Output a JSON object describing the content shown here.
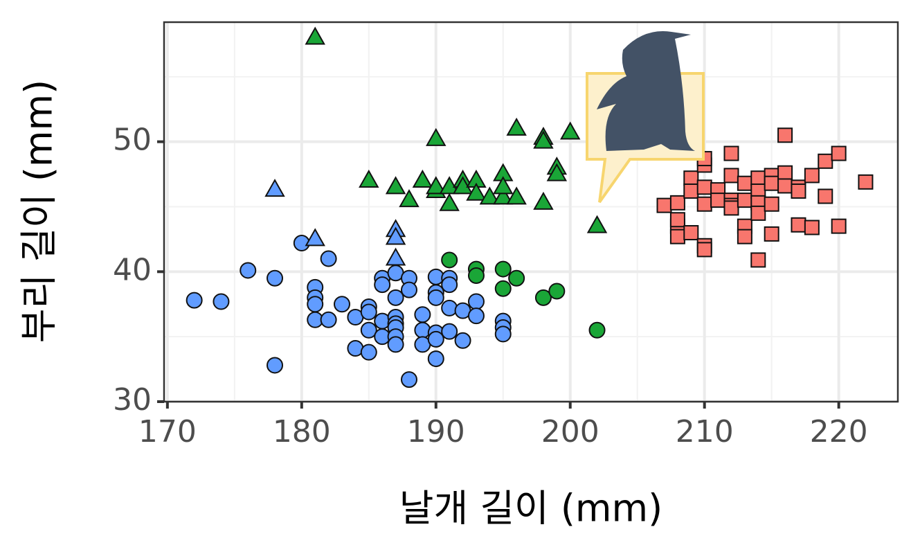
{
  "chart_data": {
    "type": "scatter",
    "x_label": "날개 길이 (mm)",
    "y_label": "부리 길이 (mm)",
    "xlim": [
      169.75,
      224.4
    ],
    "ylim": [
      30,
      59.2
    ],
    "xticks": [
      170,
      180,
      190,
      200,
      210,
      220
    ],
    "yticks": [
      30,
      40,
      50
    ],
    "grid": true,
    "series": [
      {
        "color": "#619cff",
        "marker": "circle",
        "x": [
          172,
          174,
          176,
          178,
          178,
          180,
          182,
          181,
          181,
          181,
          181,
          182,
          183,
          184,
          184,
          185,
          185,
          185,
          185,
          186,
          186,
          186,
          186,
          187,
          187,
          187,
          187,
          187,
          187,
          187,
          188,
          188,
          188,
          189,
          189,
          189,
          190,
          190,
          190,
          190,
          190,
          190,
          191,
          191,
          191,
          191,
          192,
          192,
          193,
          193,
          195,
          195,
          195
        ],
        "values": [
          37.8,
          37.7,
          40.1,
          39.5,
          32.8,
          42.2,
          41,
          38.8,
          38,
          37.5,
          36.3,
          36.3,
          37.5,
          36.5,
          34.1,
          37.3,
          36.9,
          33.8,
          35.5,
          39.5,
          39,
          35,
          36.2,
          39.9,
          38,
          36.5,
          36,
          35.7,
          35,
          34.4,
          39.5,
          38.6,
          31.7,
          36.7,
          35.5,
          34.4,
          39.6,
          38.4,
          38,
          35.3,
          34.8,
          33.3,
          39.5,
          39,
          37.2,
          35.4,
          37,
          34.7,
          37.7,
          36.6,
          36.2,
          35.7,
          35.2
        ]
      },
      {
        "color": "#619cff",
        "marker": "triangle",
        "x": [
          178,
          181,
          187,
          187,
          187
        ],
        "values": [
          46.3,
          42.5,
          43.2,
          42.6,
          41
        ]
      },
      {
        "color": "#1aa637",
        "marker": "triangle",
        "x": [
          181,
          185,
          187,
          188,
          189,
          190,
          190,
          190,
          191,
          191,
          192,
          192,
          193,
          193,
          194,
          195,
          195,
          195,
          196,
          196,
          198,
          198,
          198,
          199,
          199,
          200,
          202
        ],
        "values": [
          58,
          47,
          46.5,
          45.5,
          47,
          50.2,
          46.2,
          46.5,
          45.2,
          46.5,
          47,
          46.5,
          47,
          46,
          45.7,
          45.7,
          47.5,
          46.5,
          51,
          45.7,
          50.3,
          45.3,
          50,
          48,
          47.5,
          50.7,
          43.5
        ]
      },
      {
        "color": "#1aa637",
        "marker": "circle",
        "x": [
          191,
          193,
          193,
          195,
          195,
          196,
          198,
          199,
          202
        ],
        "values": [
          40.9,
          40.2,
          39.7,
          40.2,
          38.7,
          39.5,
          38,
          38.5,
          35.5
        ]
      },
      {
        "color": "#f8766d",
        "marker": "square",
        "x": [
          207,
          208,
          208,
          208,
          208,
          209,
          209,
          209,
          210,
          210,
          210,
          210,
          210,
          210,
          211,
          211,
          212,
          212,
          212,
          212,
          212,
          213,
          213,
          213,
          213,
          214,
          214,
          214,
          214,
          214,
          215,
          215,
          215,
          215,
          216,
          216,
          216,
          217,
          217,
          217,
          218,
          218,
          219,
          219,
          220,
          220,
          222
        ],
        "values": [
          45.1,
          45.3,
          43.5,
          42.7,
          44,
          47.2,
          46.2,
          43,
          48.2,
          48.7,
          46.5,
          45.2,
          42,
          41.7,
          46.3,
          45.5,
          49.1,
          47.4,
          45.5,
          45.1,
          44.9,
          46.8,
          45.5,
          43.5,
          42.7,
          47.2,
          46.2,
          45.3,
          44.5,
          40.9,
          47.4,
          46.8,
          45.2,
          42.9,
          50.5,
          47.6,
          46.6,
          46.5,
          46.2,
          43.6,
          47.4,
          43.4,
          48.5,
          45.8,
          49.1,
          43.5,
          46.9
        ]
      }
    ]
  }
}
